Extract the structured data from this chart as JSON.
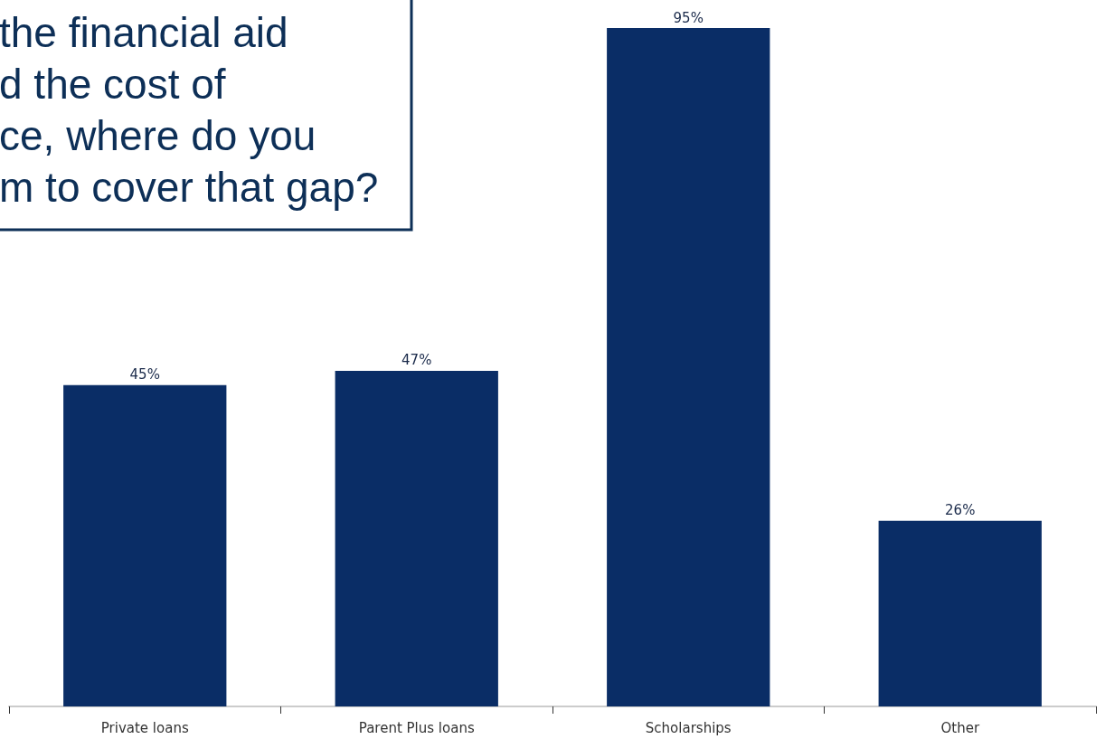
{
  "chart_data": {
    "type": "bar",
    "annotations": [
      "the financial aid",
      "d the cost of",
      "ce, where do you",
      "m to cover that gap?"
    ],
    "categories": [
      "Private loans",
      "Parent Plus loans",
      "Scholarships",
      "Other"
    ],
    "values": [
      45,
      47,
      95,
      26
    ],
    "value_labels": [
      "45%",
      "47%",
      "95%",
      "26%"
    ],
    "color": "#0a2d66"
  }
}
